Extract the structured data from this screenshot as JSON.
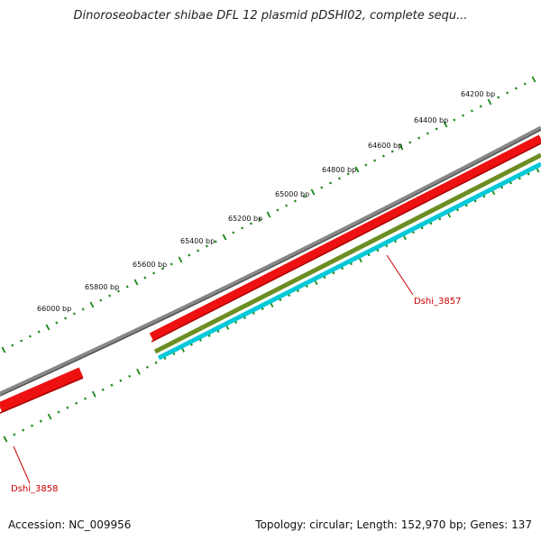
{
  "title": "Dinoroseobacter shibae DFL 12 plasmid pDSHI02, complete sequ...",
  "accession": "Accession: NC_009956",
  "summary": "Topology: circular; Length: 152,970 bp; Genes: 137",
  "ticks": [
    {
      "label": "64200 bp"
    },
    {
      "label": "64400 bp"
    },
    {
      "label": "64600 bp"
    },
    {
      "label": "64800 bp"
    },
    {
      "label": "65000 bp"
    },
    {
      "label": "65200 bp"
    },
    {
      "label": "65400 bp"
    },
    {
      "label": "65600 bp"
    },
    {
      "label": "65800 bp"
    },
    {
      "label": "66000 bp"
    }
  ],
  "genes": [
    {
      "name": "Dshi_3857"
    },
    {
      "name": "Dshi_3858"
    }
  ],
  "colors": {
    "backbone": "#888888",
    "cds": "#ee1111",
    "track_olive": "#6b8e23",
    "track_cyan": "#00c8d8",
    "ticks": "#1a8a1a",
    "gene_label": "#cc0000"
  }
}
